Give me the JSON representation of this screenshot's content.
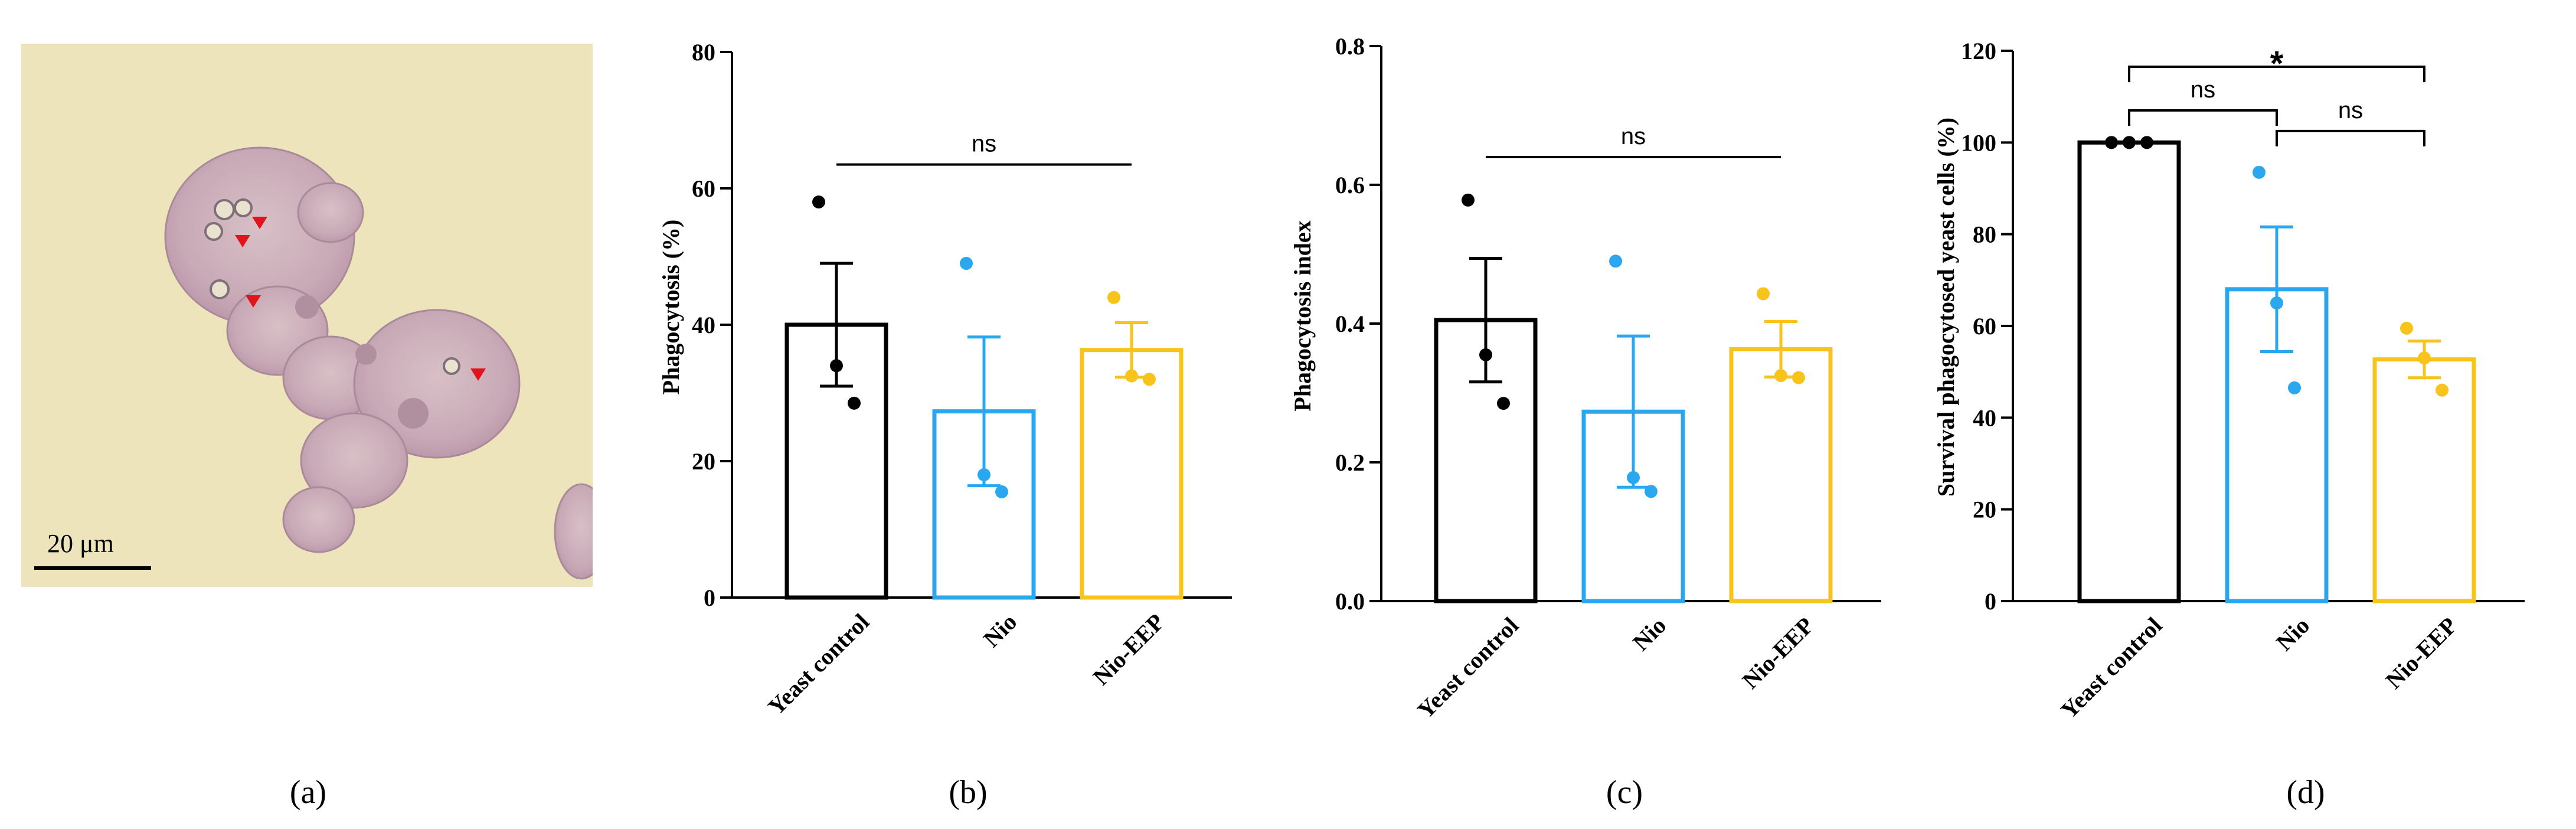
{
  "panels": {
    "a": {
      "label": "(a)",
      "scale_bar_text": "20 μm",
      "colors": {
        "background": "#eee4bb",
        "cell": "#c9adb8",
        "cell_dark": "#b190a4",
        "marker": "#e0141a"
      }
    }
  },
  "colors": {
    "control": "#000000",
    "nio": "#2aa7ee",
    "nio_eep": "#f8c41c"
  },
  "chart_data": [
    {
      "panel_label": "(b)",
      "type": "bar",
      "title": "",
      "ylabel": "Phagocytosis (%)",
      "xlabel": "",
      "ylim": [
        0,
        80
      ],
      "yticks": [
        0,
        20,
        40,
        60,
        80
      ],
      "ytick_labels": [
        "0",
        "20",
        "40",
        "60",
        "80"
      ],
      "categories": [
        "Yeast control",
        "Nio",
        "Nio-EEP"
      ],
      "series": [
        {
          "name": "Phagocytosis (%)",
          "values": [
            40,
            27.3,
            36.3
          ],
          "err": [
            9,
            10.9,
            4
          ]
        }
      ],
      "points": [
        [
          58,
          34,
          28.5
        ],
        [
          49,
          18,
          15.5
        ],
        [
          44,
          32.5,
          32
        ]
      ],
      "significance": [
        {
          "from": 0,
          "to": 2,
          "label": "ns",
          "y": 63.5,
          "style": "line"
        }
      ]
    },
    {
      "panel_label": "(c)",
      "type": "bar",
      "title": "",
      "ylabel": "Phagocytosis index",
      "xlabel": "",
      "ylim": [
        0,
        0.8
      ],
      "yticks": [
        0,
        0.2,
        0.4,
        0.6,
        0.8
      ],
      "ytick_labels": [
        "0.0",
        "0.2",
        "0.4",
        "0.6",
        "0.8"
      ],
      "categories": [
        "Yeast control",
        "Nio",
        "Nio-EEP"
      ],
      "series": [
        {
          "name": "Phagocytosis index",
          "values": [
            0.405,
            0.273,
            0.363
          ],
          "err": [
            0.089,
            0.109,
            0.04
          ]
        }
      ],
      "points": [
        [
          0.578,
          0.355,
          0.285
        ],
        [
          0.49,
          0.178,
          0.158
        ],
        [
          0.443,
          0.325,
          0.322
        ]
      ],
      "significance": [
        {
          "from": 0,
          "to": 2,
          "label": "ns",
          "y": 0.64,
          "style": "line"
        }
      ]
    },
    {
      "panel_label": "(d)",
      "type": "bar",
      "title": "",
      "ylabel": "Survival phagocytosed yeast cells (%)",
      "xlabel": "",
      "ylim": [
        0,
        120
      ],
      "yticks": [
        0,
        20,
        40,
        60,
        80,
        100,
        120
      ],
      "ytick_labels": [
        "0",
        "20",
        "40",
        "60",
        "80",
        "100",
        "120"
      ],
      "categories": [
        "Yeast control",
        "Nio",
        "Nio-EEP"
      ],
      "series": [
        {
          "name": "Survival phagocytosed yeast cells (%)",
          "values": [
            100,
            68,
            52.7
          ],
          "err": [
            0,
            13.6,
            4
          ]
        }
      ],
      "points": [
        [
          100,
          100,
          100
        ],
        [
          93.5,
          65,
          46.5
        ],
        [
          59.5,
          53,
          46
        ]
      ],
      "significance": [
        {
          "from": 0,
          "to": 2,
          "label": "*",
          "y": 116.5,
          "style": "bracket"
        },
        {
          "from": 0,
          "to": 1,
          "label": "ns",
          "y": 107,
          "style": "bracket"
        },
        {
          "from": 1,
          "to": 2,
          "label": "ns",
          "y": 102.5,
          "style": "bracket"
        }
      ]
    }
  ]
}
